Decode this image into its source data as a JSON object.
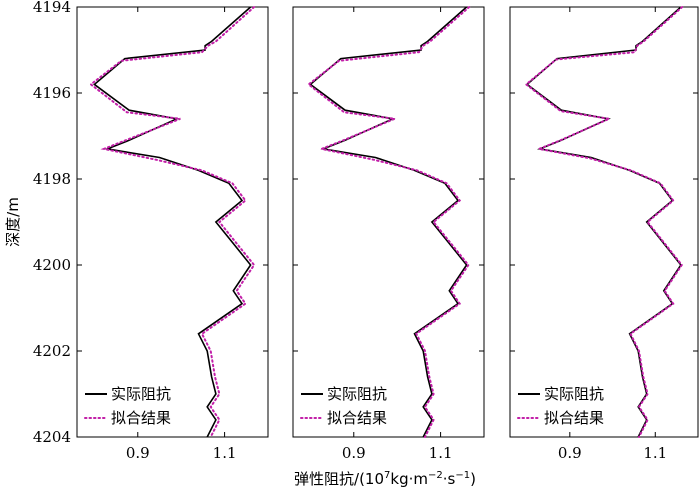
{
  "chart_data": {
    "type": "line",
    "layout": "three side-by-side panels sharing the depth (y) axis; y axis inverted (depth increases downward)",
    "ylabel": "深度/m",
    "xlabel_prefix": "弹性阻抗/(10",
    "xlabel_exponent": "7",
    "xlabel_units": "kg·m",
    "xlabel_units_exp1": "−2",
    "xlabel_units_mid": "·s",
    "xlabel_units_exp2": "−1",
    "xlabel_suffix": ")",
    "ylim": [
      4194,
      4204
    ],
    "y_ticks": [
      "4194",
      "4196",
      "4198",
      "4200",
      "4202",
      "4204"
    ],
    "xlim": [
      0.76,
      1.2
    ],
    "x_ticks": [
      "0.9",
      "1.1"
    ],
    "legend_position": "bottom-left",
    "colors": {
      "actual": "#000000",
      "fit": "#c21fa8"
    },
    "panels": [
      {
        "series": [
          {
            "name": "实际阻抗",
            "style": "solid",
            "points": [
              [
                1.16,
                4194.0
              ],
              [
                1.07,
                4194.8
              ],
              [
                1.055,
                4194.9
              ],
              [
                1.055,
                4195.0
              ],
              [
                0.87,
                4195.2
              ],
              [
                0.8,
                4195.8
              ],
              [
                0.88,
                4196.4
              ],
              [
                0.99,
                4196.6
              ],
              [
                0.88,
                4197.1
              ],
              [
                0.83,
                4197.3
              ],
              [
                0.95,
                4197.5
              ],
              [
                1.04,
                4197.8
              ],
              [
                1.11,
                4198.1
              ],
              [
                1.14,
                4198.5
              ],
              [
                1.08,
                4199.0
              ],
              [
                1.12,
                4199.5
              ],
              [
                1.16,
                4200.0
              ],
              [
                1.12,
                4200.6
              ],
              [
                1.14,
                4200.9
              ],
              [
                1.04,
                4201.6
              ],
              [
                1.06,
                4202.0
              ],
              [
                1.07,
                4202.6
              ],
              [
                1.08,
                4203.0
              ],
              [
                1.06,
                4203.3
              ],
              [
                1.08,
                4203.6
              ],
              [
                1.06,
                4204.0
              ]
            ]
          },
          {
            "name": "拟合结果",
            "style": "dotted",
            "points": [
              [
                1.168,
                4194.0
              ],
              [
                1.08,
                4194.8
              ],
              [
                1.062,
                4194.9
              ],
              [
                1.048,
                4195.05
              ],
              [
                0.862,
                4195.25
              ],
              [
                0.792,
                4195.8
              ],
              [
                0.875,
                4196.45
              ],
              [
                0.998,
                4196.6
              ],
              [
                0.872,
                4197.1
              ],
              [
                0.822,
                4197.3
              ],
              [
                0.942,
                4197.55
              ],
              [
                1.048,
                4197.8
              ],
              [
                1.118,
                4198.1
              ],
              [
                1.148,
                4198.5
              ],
              [
                1.088,
                4199.0
              ],
              [
                1.128,
                4199.5
              ],
              [
                1.168,
                4200.0
              ],
              [
                1.128,
                4200.6
              ],
              [
                1.148,
                4200.9
              ],
              [
                1.048,
                4201.6
              ],
              [
                1.068,
                4202.0
              ],
              [
                1.078,
                4202.6
              ],
              [
                1.088,
                4203.0
              ],
              [
                1.068,
                4203.3
              ],
              [
                1.088,
                4203.6
              ],
              [
                1.068,
                4204.0
              ]
            ]
          }
        ]
      },
      {
        "series": [
          {
            "name": "实际阻抗",
            "style": "solid",
            "points": [
              [
                1.16,
                4194.0
              ],
              [
                1.07,
                4194.8
              ],
              [
                1.055,
                4194.9
              ],
              [
                1.055,
                4195.0
              ],
              [
                0.87,
                4195.2
              ],
              [
                0.8,
                4195.8
              ],
              [
                0.88,
                4196.4
              ],
              [
                0.99,
                4196.6
              ],
              [
                0.88,
                4197.1
              ],
              [
                0.83,
                4197.3
              ],
              [
                0.95,
                4197.5
              ],
              [
                1.04,
                4197.8
              ],
              [
                1.11,
                4198.1
              ],
              [
                1.14,
                4198.5
              ],
              [
                1.08,
                4199.0
              ],
              [
                1.12,
                4199.5
              ],
              [
                1.16,
                4200.0
              ],
              [
                1.12,
                4200.6
              ],
              [
                1.14,
                4200.9
              ],
              [
                1.04,
                4201.6
              ],
              [
                1.06,
                4202.0
              ],
              [
                1.07,
                4202.6
              ],
              [
                1.08,
                4203.0
              ],
              [
                1.06,
                4203.3
              ],
              [
                1.08,
                4203.6
              ],
              [
                1.06,
                4204.0
              ]
            ]
          },
          {
            "name": "拟合结果",
            "style": "dotted",
            "points": [
              [
                1.166,
                4194.0
              ],
              [
                1.076,
                4194.8
              ],
              [
                1.06,
                4194.9
              ],
              [
                1.05,
                4195.05
              ],
              [
                0.866,
                4195.25
              ],
              [
                0.796,
                4195.8
              ],
              [
                0.878,
                4196.45
              ],
              [
                0.994,
                4196.6
              ],
              [
                0.876,
                4197.1
              ],
              [
                0.826,
                4197.3
              ],
              [
                0.946,
                4197.55
              ],
              [
                1.046,
                4197.8
              ],
              [
                1.114,
                4198.1
              ],
              [
                1.144,
                4198.5
              ],
              [
                1.084,
                4199.0
              ],
              [
                1.124,
                4199.5
              ],
              [
                1.164,
                4200.0
              ],
              [
                1.124,
                4200.6
              ],
              [
                1.144,
                4200.9
              ],
              [
                1.044,
                4201.6
              ],
              [
                1.064,
                4202.0
              ],
              [
                1.074,
                4202.6
              ],
              [
                1.084,
                4203.0
              ],
              [
                1.064,
                4203.3
              ],
              [
                1.084,
                4203.6
              ],
              [
                1.064,
                4204.0
              ]
            ]
          }
        ]
      },
      {
        "series": [
          {
            "name": "实际阻抗",
            "style": "solid",
            "points": [
              [
                1.16,
                4194.0
              ],
              [
                1.07,
                4194.8
              ],
              [
                1.055,
                4194.9
              ],
              [
                1.055,
                4195.0
              ],
              [
                0.87,
                4195.2
              ],
              [
                0.8,
                4195.8
              ],
              [
                0.88,
                4196.4
              ],
              [
                0.99,
                4196.6
              ],
              [
                0.88,
                4197.1
              ],
              [
                0.83,
                4197.3
              ],
              [
                0.95,
                4197.5
              ],
              [
                1.04,
                4197.8
              ],
              [
                1.11,
                4198.1
              ],
              [
                1.14,
                4198.5
              ],
              [
                1.08,
                4199.0
              ],
              [
                1.12,
                4199.5
              ],
              [
                1.16,
                4200.0
              ],
              [
                1.12,
                4200.6
              ],
              [
                1.14,
                4200.9
              ],
              [
                1.04,
                4201.6
              ],
              [
                1.06,
                4202.0
              ],
              [
                1.07,
                4202.6
              ],
              [
                1.08,
                4203.0
              ],
              [
                1.06,
                4203.3
              ],
              [
                1.08,
                4203.6
              ],
              [
                1.06,
                4204.0
              ]
            ]
          },
          {
            "name": "拟合结果",
            "style": "dotted",
            "points": [
              [
                1.163,
                4194.0
              ],
              [
                1.073,
                4194.8
              ],
              [
                1.058,
                4194.9
              ],
              [
                1.052,
                4195.05
              ],
              [
                0.868,
                4195.22
              ],
              [
                0.798,
                4195.8
              ],
              [
                0.879,
                4196.42
              ],
              [
                0.992,
                4196.6
              ],
              [
                0.878,
                4197.1
              ],
              [
                0.828,
                4197.3
              ],
              [
                0.948,
                4197.52
              ],
              [
                1.043,
                4197.8
              ],
              [
                1.112,
                4198.1
              ],
              [
                1.142,
                4198.5
              ],
              [
                1.082,
                4199.0
              ],
              [
                1.122,
                4199.5
              ],
              [
                1.162,
                4200.0
              ],
              [
                1.122,
                4200.6
              ],
              [
                1.142,
                4200.9
              ],
              [
                1.042,
                4201.6
              ],
              [
                1.062,
                4202.0
              ],
              [
                1.072,
                4202.6
              ],
              [
                1.082,
                4203.0
              ],
              [
                1.062,
                4203.3
              ],
              [
                1.082,
                4203.6
              ],
              [
                1.062,
                4204.0
              ]
            ]
          }
        ]
      }
    ]
  }
}
